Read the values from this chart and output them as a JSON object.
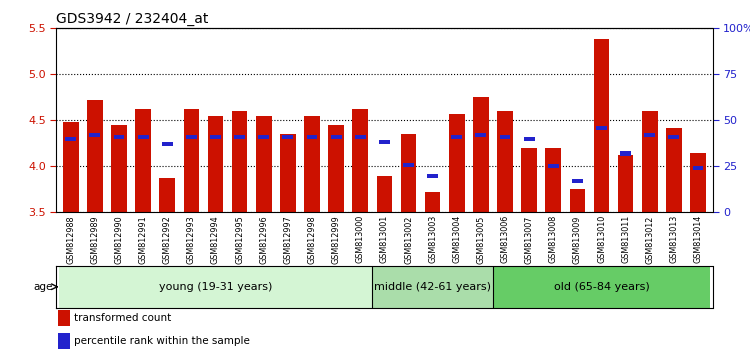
{
  "title": "GDS3942 / 232404_at",
  "samples": [
    "GSM812988",
    "GSM812989",
    "GSM812990",
    "GSM812991",
    "GSM812992",
    "GSM812993",
    "GSM812994",
    "GSM812995",
    "GSM812996",
    "GSM812997",
    "GSM812998",
    "GSM812999",
    "GSM813000",
    "GSM813001",
    "GSM813002",
    "GSM813003",
    "GSM813004",
    "GSM813005",
    "GSM813006",
    "GSM813007",
    "GSM813008",
    "GSM813009",
    "GSM813010",
    "GSM813011",
    "GSM813012",
    "GSM813013",
    "GSM813014"
  ],
  "transformed_count": [
    4.48,
    4.72,
    4.45,
    4.62,
    3.87,
    4.62,
    4.55,
    4.6,
    4.55,
    4.35,
    4.55,
    4.45,
    4.62,
    3.9,
    4.35,
    3.72,
    4.57,
    4.75,
    4.6,
    4.2,
    4.2,
    3.75,
    5.38,
    4.12,
    4.6,
    4.42,
    4.15
  ],
  "percentile_rank": [
    40,
    42,
    41,
    41,
    37,
    41,
    41,
    41,
    41,
    41,
    41,
    41,
    41,
    38,
    26,
    20,
    41,
    42,
    41,
    40,
    25,
    17,
    46,
    32,
    42,
    41,
    24
  ],
  "ylim_left": [
    3.5,
    5.5
  ],
  "ylim_right": [
    0,
    100
  ],
  "yticks_left": [
    3.5,
    4.0,
    4.5,
    5.0,
    5.5
  ],
  "yticks_right": [
    0,
    25,
    50,
    75,
    100
  ],
  "ytick_labels_right": [
    "0",
    "25",
    "50",
    "75",
    "100%"
  ],
  "bar_color": "#cc1100",
  "blue_color": "#2222cc",
  "groups": [
    {
      "label": "young (19-31 years)",
      "start": 0,
      "end": 13,
      "color": "#d4f5d4"
    },
    {
      "label": "middle (42-61 years)",
      "start": 13,
      "end": 18,
      "color": "#aaddaa"
    },
    {
      "label": "old (65-84 years)",
      "start": 18,
      "end": 27,
      "color": "#66cc66"
    }
  ],
  "age_label": "age",
  "legend_items": [
    {
      "label": "transformed count",
      "color": "#cc1100"
    },
    {
      "label": "percentile rank within the sample",
      "color": "#2222cc"
    }
  ],
  "bar_width": 0.65,
  "blue_bar_width": 0.45,
  "title_fontsize": 10,
  "tick_fontsize": 8,
  "sample_fontsize": 5.8,
  "group_fontsize": 8,
  "legend_fontsize": 7.5
}
